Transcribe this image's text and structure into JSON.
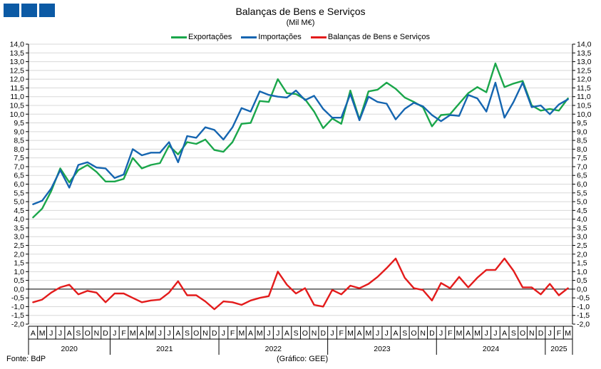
{
  "header": {
    "title": "Balanças de Bens e Serviços",
    "subtitle": "(Mil M€)"
  },
  "footer": {
    "source": "Fonte: BdP",
    "credit": "(Gráfico: GEE)"
  },
  "colors": {
    "logo": "#0b5aa5",
    "exports": "#1aa64a",
    "imports": "#1565b0",
    "balance": "#e31b1b"
  },
  "chart_data": {
    "type": "line",
    "ylim": [
      -2.0,
      14.0
    ],
    "yticks": [
      "-2,0",
      "-1,5",
      "-1,0",
      "-0,5",
      "0,0",
      "0,5",
      "1,0",
      "1,5",
      "2,0",
      "2,5",
      "3,0",
      "3,5",
      "4,0",
      "4,5",
      "5,0",
      "5,5",
      "6,0",
      "6,5",
      "7,0",
      "7,5",
      "8,0",
      "8,5",
      "9,0",
      "9,5",
      "10,0",
      "10,5",
      "11,0",
      "11,5",
      "12,0",
      "12,5",
      "13,0",
      "13,5",
      "14,0"
    ],
    "month_labels": [
      "A",
      "M",
      "J",
      "J",
      "A",
      "S",
      "O",
      "N",
      "D",
      "J",
      "F",
      "M",
      "A",
      "M",
      "J",
      "J",
      "A",
      "S",
      "O",
      "N",
      "D",
      "J",
      "F",
      "M",
      "A",
      "M",
      "J",
      "J",
      "A",
      "S",
      "O",
      "N",
      "D",
      "J",
      "F",
      "M",
      "A",
      "M",
      "J",
      "J",
      "A",
      "S",
      "O",
      "N",
      "D",
      "J",
      "F",
      "M",
      "A",
      "M",
      "J",
      "J",
      "A",
      "S",
      "O",
      "N",
      "D",
      "J",
      "F",
      "M"
    ],
    "year_labels": [
      {
        "label": "2020",
        "start": 0,
        "end": 8
      },
      {
        "label": "2021",
        "start": 9,
        "end": 20
      },
      {
        "label": "2022",
        "start": 21,
        "end": 32
      },
      {
        "label": "2023",
        "start": 33,
        "end": 44
      },
      {
        "label": "2024",
        "start": 45,
        "end": 56
      },
      {
        "label": "2025",
        "start": 57,
        "end": 59
      }
    ],
    "grid": true,
    "legend_position": "top",
    "series": [
      {
        "name": "Exportações",
        "color": "#1aa64a",
        "values": [
          4.1,
          4.6,
          5.6,
          6.9,
          6.1,
          6.8,
          7.1,
          6.7,
          6.15,
          6.15,
          6.3,
          7.5,
          6.9,
          7.1,
          7.2,
          8.2,
          7.7,
          8.4,
          8.3,
          8.55,
          7.95,
          7.85,
          8.4,
          9.45,
          9.5,
          10.75,
          10.7,
          12.0,
          11.2,
          11.15,
          10.85,
          10.15,
          9.2,
          9.75,
          9.45,
          11.35,
          9.7,
          11.3,
          11.4,
          11.8,
          11.45,
          10.95,
          10.7,
          10.4,
          9.3,
          9.95,
          10.0,
          10.6,
          11.2,
          11.55,
          11.25,
          12.9,
          11.55,
          11.75,
          11.9,
          10.5,
          10.2,
          10.3,
          10.2,
          10.9
        ]
      },
      {
        "name": "Importações",
        "color": "#1565b0",
        "values": [
          4.85,
          5.05,
          5.75,
          6.8,
          5.8,
          7.1,
          7.25,
          6.95,
          6.9,
          6.35,
          6.55,
          8.0,
          7.65,
          7.8,
          7.8,
          8.4,
          7.25,
          8.75,
          8.65,
          9.25,
          9.1,
          8.55,
          9.25,
          10.35,
          10.15,
          11.3,
          11.1,
          11.0,
          10.95,
          11.35,
          10.8,
          11.05,
          10.3,
          9.8,
          9.8,
          11.15,
          9.65,
          11.0,
          10.7,
          10.6,
          9.7,
          10.3,
          10.65,
          10.45,
          9.95,
          9.6,
          9.95,
          9.9,
          11.1,
          10.9,
          10.15,
          11.8,
          9.8,
          10.7,
          11.8,
          10.4,
          10.5,
          10.0,
          10.55,
          10.85
        ]
      },
      {
        "name": "Balanças de Bens e Serviços",
        "color": "#e31b1b",
        "values": [
          -0.75,
          -0.6,
          -0.2,
          0.1,
          0.25,
          -0.3,
          -0.1,
          -0.2,
          -0.75,
          -0.25,
          -0.25,
          -0.5,
          -0.75,
          -0.65,
          -0.6,
          -0.2,
          0.45,
          -0.35,
          -0.35,
          -0.7,
          -1.15,
          -0.7,
          -0.75,
          -0.9,
          -0.65,
          -0.5,
          -0.4,
          1.0,
          0.25,
          -0.25,
          0.05,
          -0.9,
          -1.0,
          -0.05,
          -0.3,
          0.2,
          0.05,
          0.3,
          0.7,
          1.2,
          1.75,
          0.65,
          0.05,
          -0.05,
          -0.65,
          0.35,
          0.05,
          0.7,
          0.1,
          0.65,
          1.1,
          1.1,
          1.75,
          1.05,
          0.1,
          0.1,
          -0.3,
          0.3,
          -0.35,
          0.05
        ]
      }
    ]
  }
}
